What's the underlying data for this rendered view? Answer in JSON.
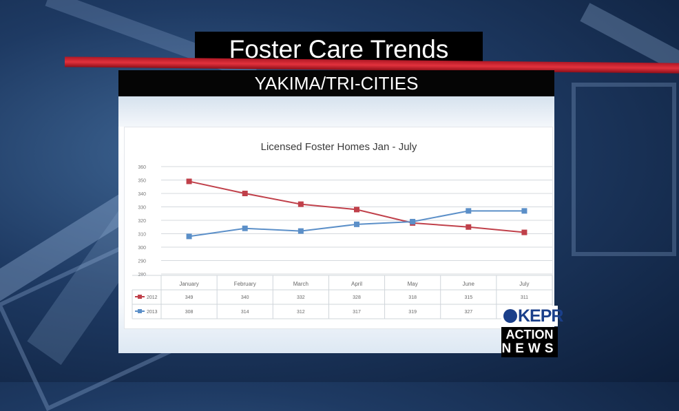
{
  "broadcast": {
    "title": "Foster Care Trends",
    "subtitle": "YAKIMA/TRI-CITIES",
    "station_logo": "KEPR",
    "station_tagline_1": "ACTION",
    "station_tagline_2": "NEWS"
  },
  "colors": {
    "accent_red": "#d9303a",
    "series_2012": "#c0404a",
    "series_2013": "#5b8fc8"
  },
  "chart_data": {
    "type": "line",
    "title": "Licensed Foster Homes Jan - July",
    "categories": [
      "January",
      "February",
      "March",
      "April",
      "May",
      "June",
      "July"
    ],
    "yticks": [
      280,
      290,
      300,
      310,
      320,
      330,
      340,
      350,
      360
    ],
    "ylim": [
      280,
      360
    ],
    "grid": true,
    "legend": "data-table",
    "series": [
      {
        "name": "2012",
        "values": [
          349,
          340,
          332,
          328,
          318,
          315,
          311
        ]
      },
      {
        "name": "2013",
        "values": [
          308,
          314,
          312,
          317,
          319,
          327,
          327
        ]
      }
    ]
  }
}
